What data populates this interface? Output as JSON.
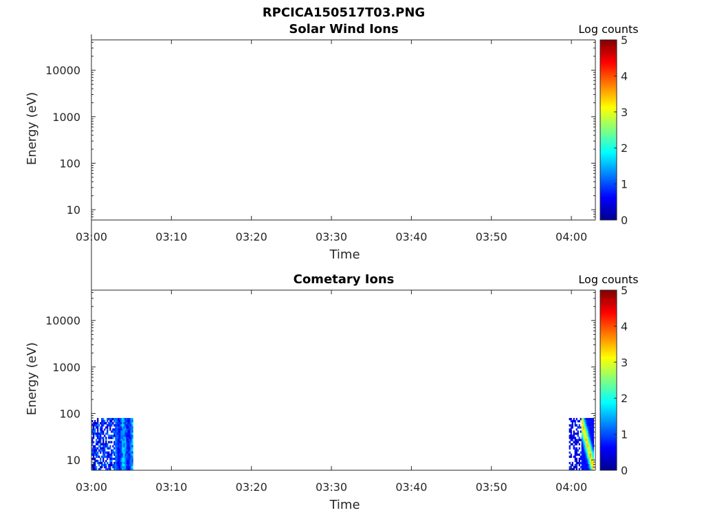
{
  "figure_title": "RPCICA150517T03.PNG",
  "chart_data": [
    {
      "type": "heatmap",
      "title": "Solar Wind Ions",
      "xlabel": "Time",
      "ylabel": "Energy (eV)",
      "x_ticks": [
        "03:00",
        "03:10",
        "03:20",
        "03:30",
        "03:40",
        "03:50",
        "04:00"
      ],
      "xlim_minutes": [
        0,
        63
      ],
      "y_scale": "log",
      "y_ticks": [
        10,
        100,
        1000,
        10000
      ],
      "y_tick_labels": [
        "10",
        "100",
        "1000",
        "10000"
      ],
      "ylim": [
        6,
        45000
      ],
      "colorbar": {
        "label": "Log counts",
        "ticks": [
          "0",
          "1",
          "2",
          "3",
          "4",
          "5"
        ],
        "range": [
          0,
          5
        ],
        "colormap": "jet"
      },
      "data_regions": []
    },
    {
      "type": "heatmap",
      "title": "Cometary Ions",
      "xlabel": "Time",
      "ylabel": "Energy (eV)",
      "x_ticks": [
        "03:00",
        "03:10",
        "03:20",
        "03:30",
        "03:40",
        "03:50",
        "04:00"
      ],
      "xlim_minutes": [
        0,
        63
      ],
      "y_scale": "log",
      "y_ticks": [
        10,
        100,
        1000,
        10000
      ],
      "y_tick_labels": [
        "10",
        "100",
        "1000",
        "10000"
      ],
      "ylim": [
        6,
        45000
      ],
      "colorbar": {
        "label": "Log counts",
        "ticks": [
          "0",
          "1",
          "2",
          "3",
          "4",
          "5"
        ],
        "range": [
          0,
          5
        ],
        "colormap": "jet"
      },
      "data_regions": [
        {
          "t_start_min": 0.0,
          "t_end_min": 5.2,
          "e_min": 6,
          "e_max": 80,
          "log_counts_range": [
            0.2,
            2.0
          ]
        },
        {
          "t_start_min": 59.7,
          "t_end_min": 62.8,
          "e_min": 6,
          "e_max": 80,
          "log_counts_range": [
            0.2,
            3.8
          ]
        }
      ]
    }
  ]
}
